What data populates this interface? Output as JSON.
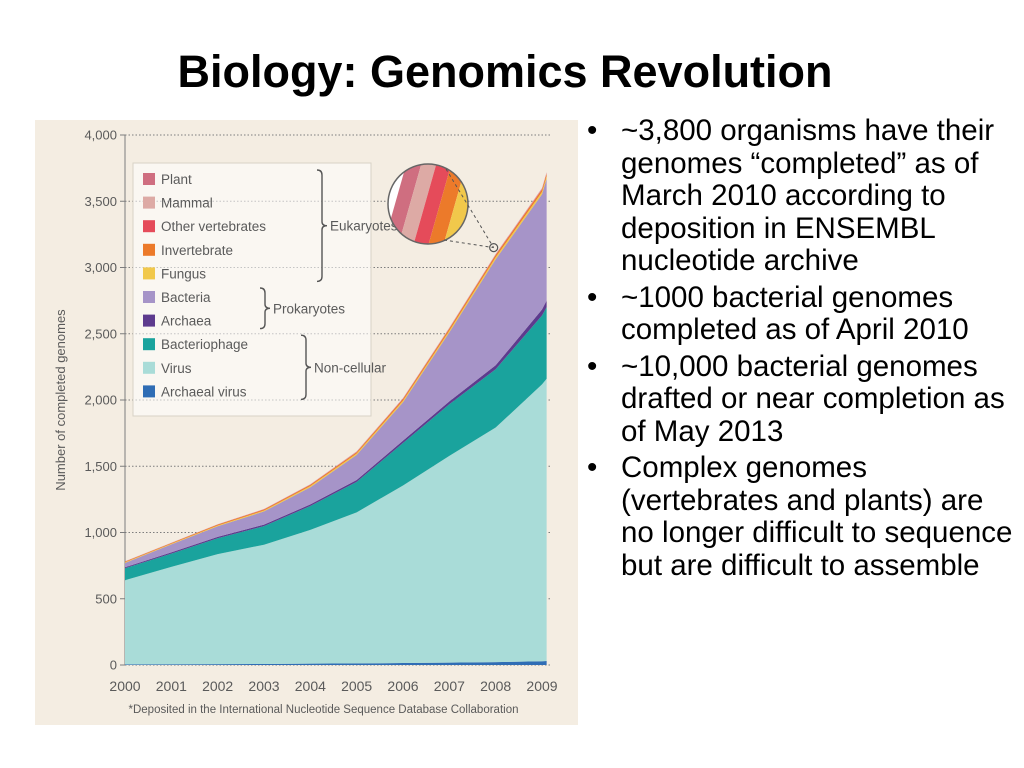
{
  "slide": {
    "title": "Biology: Genomics Revolution",
    "bullets": [
      "~3,800 organisms have their genomes “completed” as of March 2010 according to deposition in ENSEMBL nucleotide archive",
      "~1000 bacterial genomes completed as of April 2010",
      "~10,000 bacterial genomes drafted or near completion as of May 2013",
      "Complex genomes (vertebrates and plants) are no longer difficult to sequence but are difficult to assemble"
    ],
    "bullet_symbol": "•"
  },
  "chart_data": {
    "type": "area",
    "stacked": true,
    "ylabel": "Number of completed genomes",
    "footnote": "*Deposited in the International Nucleotide Sequence Database Collaboration",
    "x": [
      2000,
      2001,
      2002,
      2003,
      2004,
      2005,
      2006,
      2007,
      2008,
      2009,
      2009.1
    ],
    "x_tick_labels": [
      "2000",
      "2001",
      "2002",
      "2003",
      "2004",
      "2005",
      "2006",
      "2007",
      "2008",
      "2009"
    ],
    "ylim": [
      0,
      4000
    ],
    "y_ticks": [
      0,
      500,
      1000,
      1500,
      2000,
      2500,
      3000,
      3500,
      4000
    ],
    "y_tick_labels": [
      "0",
      "500",
      "1,000",
      "1,500",
      "2,000",
      "2,500",
      "3,000",
      "3,500",
      "4,000"
    ],
    "grid": "horizontal-dotted",
    "series": [
      {
        "name": "Archaeal virus",
        "color": "#2f6db5",
        "values": [
          5,
          6,
          7,
          8,
          10,
          12,
          15,
          18,
          22,
          28,
          30
        ]
      },
      {
        "name": "Virus",
        "color": "#a9dcd8",
        "values": [
          635,
          735,
          830,
          900,
          1010,
          1140,
          1340,
          1560,
          1770,
          2090,
          2130
        ]
      },
      {
        "name": "Bacteriophage",
        "color": "#1aa39d",
        "values": [
          90,
          100,
          120,
          140,
          180,
          230,
          320,
          390,
          440,
          520,
          540
        ]
      },
      {
        "name": "Archaea",
        "color": "#5d3b8e",
        "values": [
          8,
          9,
          10,
          11,
          12,
          14,
          18,
          22,
          30,
          45,
          50
        ]
      },
      {
        "name": "Bacteria",
        "color": "#a694c8",
        "values": [
          32,
          60,
          80,
          100,
          130,
          190,
          290,
          520,
          800,
          870,
          920
        ]
      },
      {
        "name": "Fungus",
        "color": "#f1c84b",
        "values": [
          5,
          5,
          6,
          7,
          9,
          10,
          12,
          14,
          16,
          18,
          20
        ]
      },
      {
        "name": "Invertebrate",
        "color": "#ec7a2a",
        "values": [
          5,
          5,
          6,
          7,
          8,
          10,
          12,
          14,
          15,
          17,
          18
        ]
      },
      {
        "name": "Other vertebrates",
        "color": "#e54b5a",
        "values": [
          1,
          1,
          1,
          2,
          2,
          2,
          3,
          3,
          4,
          4,
          4
        ]
      },
      {
        "name": "Mammal",
        "color": "#ddaaa5",
        "values": [
          1,
          1,
          1,
          1,
          2,
          2,
          2,
          3,
          3,
          4,
          4
        ]
      },
      {
        "name": "Plant",
        "color": "#cf6e80",
        "values": [
          1,
          1,
          1,
          1,
          1,
          2,
          2,
          2,
          2,
          3,
          3
        ]
      }
    ],
    "legend": {
      "placement": "top-left",
      "entries": [
        {
          "label": "Plant",
          "color": "#cf6e80"
        },
        {
          "label": "Mammal",
          "color": "#ddaaa5"
        },
        {
          "label": "Other vertebrates",
          "color": "#e54b5a"
        },
        {
          "label": "Invertebrate",
          "color": "#ec7a2a"
        },
        {
          "label": "Fungus",
          "color": "#f1c84b"
        },
        {
          "label": "Bacteria",
          "color": "#a694c8"
        },
        {
          "label": "Archaea",
          "color": "#5d3b8e"
        },
        {
          "label": "Bacteriophage",
          "color": "#1aa39d"
        },
        {
          "label": "Virus",
          "color": "#a9dcd8"
        },
        {
          "label": "Archaeal virus",
          "color": "#2f6db5"
        }
      ],
      "groups": [
        {
          "label": "Eukaryotes",
          "first": 0,
          "last": 4
        },
        {
          "label": "Prokaryotes",
          "first": 5,
          "last": 6
        },
        {
          "label": "Non-cellular",
          "first": 7,
          "last": 9
        }
      ]
    },
    "inset": {
      "description": "magnified view of eukaryote bands at 2008",
      "anchor_x": 2008,
      "anchor_y": 3150,
      "stripe_colors": [
        "#cf6e80",
        "#ddaaa5",
        "#e54b5a",
        "#ec7a2a",
        "#f1c84b",
        "#a694c8"
      ]
    },
    "colors": {
      "panel_background": "#f4ede2",
      "axis_text": "#5a5a5a"
    }
  }
}
